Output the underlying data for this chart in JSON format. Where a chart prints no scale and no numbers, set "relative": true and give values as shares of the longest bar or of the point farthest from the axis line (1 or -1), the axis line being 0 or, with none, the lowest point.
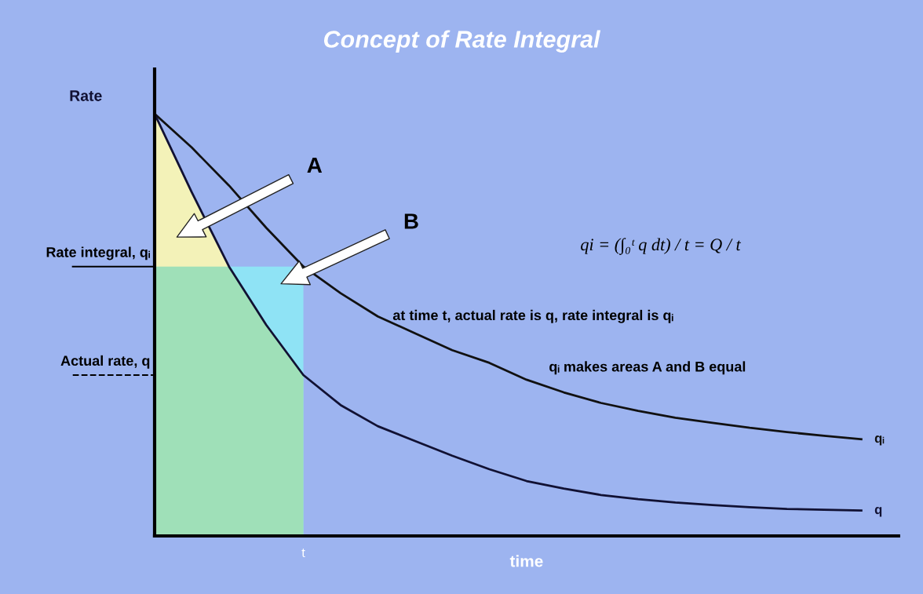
{
  "chart_data": {
    "type": "line",
    "title": "Concept of Rate Integral",
    "xlabel": "time",
    "ylabel": "Rate",
    "relative": true,
    "categories": [
      null,
      null,
      null,
      null,
      null,
      null,
      null,
      null,
      null,
      null,
      null,
      null,
      null,
      null,
      null,
      null,
      null,
      null,
      null,
      null
    ],
    "series": [
      {
        "type": "area",
        "color": "#f3f2b8",
        "values": [
          1.0,
          0.814,
          0.638,
          null,
          null,
          null,
          null,
          null,
          null,
          null,
          null,
          null,
          null,
          null,
          null,
          null,
          null,
          null,
          null,
          null
        ]
      },
      {
        "type": "area",
        "color": "#8fe3f5",
        "values": [
          null,
          null,
          0.638,
          0.638,
          0.638,
          null,
          null,
          null,
          null,
          null,
          null,
          null,
          null,
          null,
          null,
          null,
          null,
          null,
          null,
          null
        ]
      },
      {
        "type": "area",
        "color": "#9fe0b8",
        "values": [
          0.638,
          0.638,
          0.638,
          0.5,
          0.381,
          null,
          null,
          null,
          null,
          null,
          null,
          null,
          null,
          null,
          null,
          null,
          null,
          null,
          null,
          null
        ]
      },
      {
        "name": "qᵢ",
        "color": "#111111",
        "values": [
          1.0,
          0.92,
          0.83,
          0.73,
          0.638,
          0.575,
          0.52,
          0.48,
          0.44,
          0.41,
          0.37,
          0.34,
          0.315,
          0.296,
          0.28,
          0.268,
          0.256,
          0.246,
          0.237,
          0.229
        ]
      },
      {
        "name": "q",
        "color": "#111133",
        "values": [
          1.0,
          0.814,
          0.638,
          0.5,
          0.381,
          0.31,
          0.26,
          0.225,
          0.19,
          0.158,
          0.13,
          0.112,
          0.097,
          0.087,
          0.079,
          0.073,
          0.068,
          0.064,
          0.062,
          0.06
        ]
      }
    ],
    "ref_lines": [
      {
        "axis": "y",
        "value": 0.638,
        "label": "Rate integral, qᵢ",
        "line_style": "solid"
      },
      {
        "axis": "y",
        "value": 0.381,
        "label": "Actual rate, q",
        "line_style": "dashed"
      }
    ],
    "annotations": [
      "A",
      "B",
      "qi = (∫₀ᵗ q dt) / t = Q / t",
      "at time t, actual rate is q, rate integral is qᵢ",
      "qᵢ makes areas A and B equal",
      "t"
    ]
  }
}
